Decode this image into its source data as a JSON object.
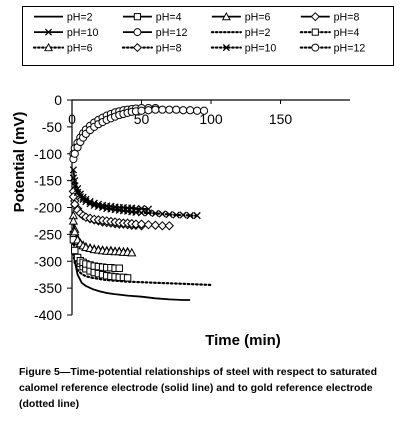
{
  "chart_data": {
    "type": "line",
    "xlabel": "Time (min)",
    "ylabel": "Potential (mV)",
    "xlim": [
      0,
      200
    ],
    "ylim": [
      -400,
      0
    ],
    "xticks": [
      0,
      50,
      100,
      150
    ],
    "yticks": [
      0,
      -50,
      -100,
      -150,
      -200,
      -250,
      -300,
      -350,
      -400
    ],
    "x_axis_position": "top",
    "grid": false,
    "legend_position": "top",
    "series": [
      {
        "name": "pH=2",
        "style": "solid",
        "marker": "none",
        "x": [
          1,
          2,
          4,
          7,
          10,
          15,
          20,
          25,
          30,
          40,
          50,
          60,
          70,
          80,
          85
        ],
        "y": [
          -265,
          -300,
          -325,
          -340,
          -346,
          -352,
          -356,
          -359,
          -361,
          -364,
          -366,
          -369,
          -371,
          -372,
          -372
        ]
      },
      {
        "name": "pH=4",
        "style": "solid",
        "marker": "square",
        "x": [
          1,
          2,
          4,
          6,
          8,
          10,
          13,
          16,
          19,
          22,
          25,
          28,
          31,
          34,
          37,
          40
        ],
        "y": [
          -250,
          -275,
          -295,
          -304,
          -310,
          -314,
          -318,
          -321,
          -323,
          -325,
          -327,
          -328,
          -329,
          -330,
          -330,
          -331
        ]
      },
      {
        "name": "pH=6",
        "style": "solid",
        "marker": "triangle",
        "x": [
          1,
          2,
          4,
          6,
          8,
          10,
          13,
          16,
          19,
          22,
          25,
          28,
          31,
          34,
          37,
          40
        ],
        "y": [
          -215,
          -240,
          -258,
          -266,
          -270,
          -273,
          -275,
          -277,
          -278,
          -279,
          -280,
          -280,
          -281,
          -281,
          -282,
          -282
        ]
      },
      {
        "name": "pH=8",
        "style": "solid",
        "marker": "diamond",
        "x": [
          1,
          2,
          4,
          6,
          8,
          10,
          13,
          16,
          19,
          22,
          25,
          28,
          31,
          34,
          37,
          40,
          43,
          46,
          50
        ],
        "y": [
          -170,
          -188,
          -202,
          -210,
          -215,
          -218,
          -221,
          -223,
          -225,
          -227,
          -228,
          -229,
          -230,
          -231,
          -231,
          -232,
          -233,
          -233,
          -234
        ]
      },
      {
        "name": "pH=10",
        "style": "solid",
        "marker": "x",
        "x": [
          1,
          2,
          4,
          6,
          8,
          10,
          13,
          16,
          19,
          22,
          25,
          28,
          31,
          34,
          37,
          40,
          43,
          46,
          50,
          55
        ],
        "y": [
          -130,
          -150,
          -165,
          -175,
          -181,
          -185,
          -189,
          -192,
          -194,
          -196,
          -197,
          -198,
          -199,
          -200,
          -200,
          -201,
          -201,
          -202,
          -202,
          -203
        ]
      },
      {
        "name": "pH=12",
        "style": "solid",
        "marker": "circle",
        "x": [
          1,
          2,
          4,
          6,
          8,
          10,
          13,
          16,
          19,
          22,
          25,
          28,
          31,
          34,
          37,
          40,
          43,
          46,
          50,
          55,
          60
        ],
        "y": [
          -100,
          -90,
          -80,
          -70,
          -62,
          -55,
          -48,
          -42,
          -37,
          -33,
          -29,
          -26,
          -23,
          -21,
          -19,
          -18,
          -17,
          -16,
          -15,
          -15,
          -15
        ]
      },
      {
        "name": "pH=2",
        "style": "dotted",
        "marker": "none",
        "x": [
          1,
          2,
          4,
          7,
          10,
          15,
          20,
          25,
          30,
          40,
          50,
          60,
          70,
          80,
          90,
          100
        ],
        "y": [
          -285,
          -303,
          -316,
          -324,
          -328,
          -331,
          -333,
          -335,
          -336,
          -338,
          -339,
          -340,
          -341,
          -342,
          -343,
          -344
        ]
      },
      {
        "name": "pH=4",
        "style": "dotted",
        "marker": "square",
        "x": [
          1,
          2,
          4,
          6,
          8,
          10,
          13,
          16,
          19,
          22,
          25,
          28,
          31,
          34
        ],
        "y": [
          -260,
          -280,
          -293,
          -299,
          -302,
          -305,
          -307,
          -309,
          -310,
          -311,
          -312,
          -312,
          -313,
          -313
        ]
      },
      {
        "name": "pH=6",
        "style": "dotted",
        "marker": "triangle",
        "x": [
          1,
          2,
          4,
          6,
          8,
          10,
          13,
          16,
          19,
          22,
          25,
          28,
          31,
          34,
          37,
          40,
          43
        ],
        "y": [
          -225,
          -245,
          -260,
          -267,
          -271,
          -274,
          -276,
          -278,
          -279,
          -280,
          -281,
          -281,
          -282,
          -282,
          -283,
          -283,
          -284
        ]
      },
      {
        "name": "pH=8",
        "style": "dotted",
        "marker": "diamond",
        "x": [
          1,
          2,
          4,
          6,
          8,
          10,
          13,
          16,
          19,
          22,
          25,
          28,
          31,
          34,
          37,
          40,
          43,
          46,
          50,
          55,
          60,
          65,
          70
        ],
        "y": [
          -180,
          -194,
          -205,
          -211,
          -215,
          -218,
          -220,
          -222,
          -223,
          -224,
          -225,
          -226,
          -227,
          -228,
          -229,
          -229,
          -230,
          -231,
          -231,
          -232,
          -233,
          -234,
          -234
        ]
      },
      {
        "name": "pH=10",
        "style": "dotted",
        "marker": "x",
        "x": [
          1,
          2,
          4,
          6,
          8,
          10,
          13,
          16,
          19,
          22,
          25,
          28,
          31,
          34,
          37,
          40,
          43,
          46,
          50,
          55,
          60,
          65,
          70,
          75,
          80,
          85,
          90
        ],
        "y": [
          -145,
          -160,
          -172,
          -180,
          -185,
          -189,
          -193,
          -196,
          -198,
          -200,
          -202,
          -203,
          -204,
          -205,
          -206,
          -207,
          -208,
          -209,
          -210,
          -210,
          -211,
          -212,
          -213,
          -214,
          -214,
          -215,
          -215
        ]
      },
      {
        "name": "pH=12",
        "style": "dotted",
        "marker": "circle",
        "x": [
          1,
          2,
          4,
          6,
          8,
          10,
          13,
          16,
          19,
          22,
          25,
          28,
          31,
          34,
          37,
          40,
          43,
          46,
          50,
          55,
          60,
          65,
          70,
          75,
          80,
          85,
          90,
          95
        ],
        "y": [
          -110,
          -100,
          -88,
          -78,
          -70,
          -63,
          -56,
          -50,
          -45,
          -41,
          -37,
          -34,
          -31,
          -28,
          -26,
          -24,
          -22,
          -21,
          -20,
          -19,
          -18,
          -18,
          -18,
          -18,
          -19,
          -19,
          -20,
          -20
        ]
      }
    ]
  },
  "caption": "Figure 5—Time-potential relationships of steel with respect to saturated calomel reference electrode (solid line) and to gold reference electrode (dotted line)"
}
